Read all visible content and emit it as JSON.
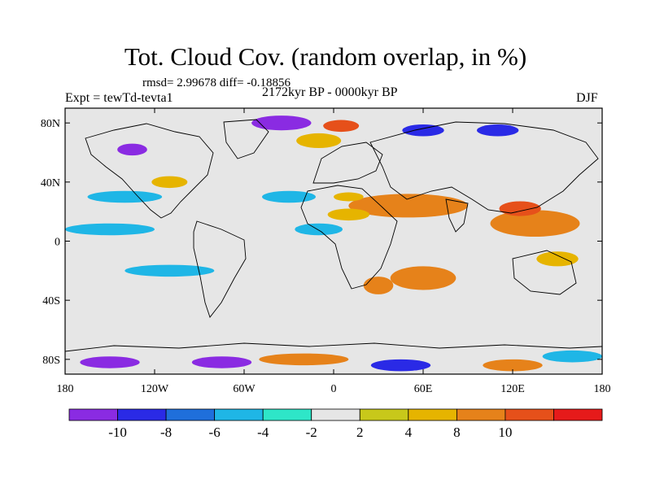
{
  "title": "Tot. Cloud Cov. (random overlap, in %)",
  "stats_line": "rmsd= 2.99678 diff= -0.18856",
  "experiment": "Expt = tewTd-tevta1",
  "period": "2172kyr BP - 0000kyr BP",
  "season": "DJF",
  "map": {
    "projection": "cylindrical-equidistant",
    "lon_range": [
      -180,
      180
    ],
    "lat_range": [
      -90,
      90
    ],
    "lat_ticks": [
      {
        "value": 80,
        "label": "80N"
      },
      {
        "value": 40,
        "label": "40N"
      },
      {
        "value": 0,
        "label": "0"
      },
      {
        "value": -40,
        "label": "40S"
      },
      {
        "value": -80,
        "label": "80S"
      }
    ],
    "lon_ticks": [
      {
        "value": -180,
        "label": "180"
      },
      {
        "value": -120,
        "label": "120W"
      },
      {
        "value": -60,
        "label": "60W"
      },
      {
        "value": 0,
        "label": "0"
      },
      {
        "value": 60,
        "label": "60E"
      },
      {
        "value": 120,
        "label": "120E"
      },
      {
        "value": 180,
        "label": "180"
      }
    ],
    "background_color": "#e6e6e6"
  },
  "colorbar": {
    "colors": [
      "#8a2be2",
      "#2a2ae6",
      "#1f6fdb",
      "#1fb6e6",
      "#2ee6c8",
      "#e6e6e6",
      "#c8c81a",
      "#e6b400",
      "#e6821a",
      "#e6501a",
      "#e61a1a"
    ],
    "labels": [
      "-10",
      "-8",
      "-6",
      "-4",
      "-2",
      "2",
      "4",
      "8",
      "10"
    ]
  },
  "anomalies": [
    {
      "lon": 56,
      "lat": 12,
      "rlon": 24,
      "rlat": 6,
      "level": 1
    },
    {
      "lon": 40,
      "lat": -8,
      "rlon": 18,
      "rlat": 5,
      "level": 1
    },
    {
      "lon": 50,
      "lat": 24,
      "rlon": 40,
      "rlat": 8,
      "level": 8
    },
    {
      "lon": 60,
      "lat": -25,
      "rlon": 22,
      "rlat": 8,
      "level": 8
    },
    {
      "lon": 135,
      "lat": 12,
      "rlon": 30,
      "rlat": 9,
      "level": 8
    },
    {
      "lon": 125,
      "lat": 22,
      "rlon": 14,
      "rlat": 5,
      "level": 10
    },
    {
      "lon": 30,
      "lat": -30,
      "rlon": 10,
      "rlat": 6,
      "level": 8
    },
    {
      "lon": 150,
      "lat": -12,
      "rlon": 14,
      "rlat": 5,
      "level": 4
    },
    {
      "lon": -150,
      "lat": 8,
      "rlon": 30,
      "rlat": 4,
      "level": -4
    },
    {
      "lon": -140,
      "lat": 30,
      "rlon": 25,
      "rlat": 4,
      "level": -4
    },
    {
      "lon": -110,
      "lat": -20,
      "rlon": 30,
      "rlat": 4,
      "level": -4
    },
    {
      "lon": -30,
      "lat": 30,
      "rlon": 18,
      "rlat": 4,
      "level": -4
    },
    {
      "lon": -10,
      "lat": 8,
      "rlon": 16,
      "rlat": 4,
      "level": -4
    },
    {
      "lon": 10,
      "lat": 18,
      "rlon": 14,
      "rlat": 4,
      "level": 4
    },
    {
      "lon": 10,
      "lat": 30,
      "rlon": 10,
      "rlat": 3,
      "level": 4
    },
    {
      "lon": -110,
      "lat": 40,
      "rlon": 12,
      "rlat": 4,
      "level": 4
    },
    {
      "lon": -10,
      "lat": 68,
      "rlon": 15,
      "rlat": 5,
      "level": 4
    },
    {
      "lon": -35,
      "lat": 80,
      "rlon": 20,
      "rlat": 5,
      "level": -10
    },
    {
      "lon": 5,
      "lat": 78,
      "rlon": 12,
      "rlat": 4,
      "level": 10
    },
    {
      "lon": 60,
      "lat": 75,
      "rlon": 14,
      "rlat": 4,
      "level": -8
    },
    {
      "lon": 110,
      "lat": 75,
      "rlon": 14,
      "rlat": 4,
      "level": -8
    },
    {
      "lon": -135,
      "lat": 62,
      "rlon": 10,
      "rlat": 4,
      "level": -10
    },
    {
      "lon": -150,
      "lat": -82,
      "rlon": 20,
      "rlat": 4,
      "level": -10
    },
    {
      "lon": -75,
      "lat": -82,
      "rlon": 20,
      "rlat": 4,
      "level": -10
    },
    {
      "lon": 45,
      "lat": -84,
      "rlon": 20,
      "rlat": 4,
      "level": -8
    },
    {
      "lon": 120,
      "lat": -84,
      "rlon": 20,
      "rlat": 4,
      "level": 8
    },
    {
      "lon": -20,
      "lat": -80,
      "rlon": 30,
      "rlat": 4,
      "level": 8
    },
    {
      "lon": 160,
      "lat": -78,
      "rlon": 20,
      "rlat": 4,
      "level": -4
    }
  ]
}
